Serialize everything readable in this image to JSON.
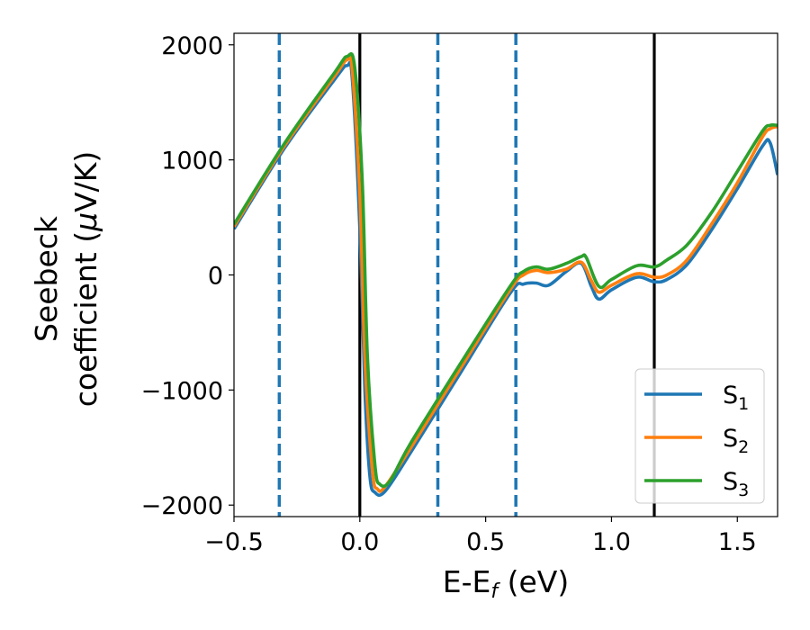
{
  "chart_data": {
    "type": "line",
    "title": "",
    "xlabel": "E-E",
    "xlabel_sub": "f",
    "xlabel_unit": " (eV)",
    "ylabel_line1": "Seebeck",
    "ylabel_line2": "coefficient  (",
    "ylabel_mu": "μ",
    "ylabel_unit": "V/K)",
    "xlim": [
      -0.5,
      1.66
    ],
    "ylim": [
      -2100,
      2100
    ],
    "x_ticks": [
      -0.5,
      0.0,
      0.5,
      1.0,
      1.5
    ],
    "x_tick_labels": [
      "−0.5",
      "0.0",
      "0.5",
      "1.0",
      "1.5"
    ],
    "y_ticks": [
      2000,
      1000,
      0,
      -1000,
      -2000
    ],
    "y_tick_labels": [
      "2000",
      "1000",
      "0",
      "−1000",
      "−2000"
    ],
    "grid": false,
    "legend_position": "bottom-right",
    "vertical_lines": [
      {
        "x": -0.32,
        "style": "dashed",
        "color": "#1f77b4"
      },
      {
        "x": 0.0,
        "style": "solid",
        "color": "#000000"
      },
      {
        "x": 0.31,
        "style": "dashed",
        "color": "#1f77b4"
      },
      {
        "x": 0.62,
        "style": "dashed",
        "color": "#1f77b4"
      },
      {
        "x": 1.17,
        "style": "solid",
        "color": "#000000"
      }
    ],
    "series": [
      {
        "name": "S",
        "sub": "1",
        "color": "#1f77b4",
        "points": [
          [
            -0.5,
            400
          ],
          [
            -0.3,
            1100
          ],
          [
            -0.1,
            1700
          ],
          [
            -0.05,
            1820
          ],
          [
            -0.03,
            1700
          ],
          [
            0.0,
            400
          ],
          [
            0.02,
            -1000
          ],
          [
            0.04,
            -1750
          ],
          [
            0.06,
            -1890
          ],
          [
            0.1,
            -1880
          ],
          [
            0.2,
            -1550
          ],
          [
            0.4,
            -850
          ],
          [
            0.6,
            -150
          ],
          [
            0.65,
            -80
          ],
          [
            0.7,
            -70
          ],
          [
            0.75,
            -90
          ],
          [
            0.82,
            30
          ],
          [
            0.88,
            100
          ],
          [
            0.92,
            -100
          ],
          [
            0.95,
            -210
          ],
          [
            1.0,
            -130
          ],
          [
            1.1,
            -20
          ],
          [
            1.17,
            -60
          ],
          [
            1.22,
            -40
          ],
          [
            1.3,
            90
          ],
          [
            1.4,
            400
          ],
          [
            1.5,
            750
          ],
          [
            1.6,
            1120
          ],
          [
            1.63,
            1150
          ],
          [
            1.66,
            870
          ]
        ]
      },
      {
        "name": "S",
        "sub": "2",
        "color": "#ff7f0e",
        "points": [
          [
            -0.5,
            420
          ],
          [
            -0.3,
            1120
          ],
          [
            -0.1,
            1730
          ],
          [
            -0.05,
            1870
          ],
          [
            -0.03,
            1780
          ],
          [
            0.0,
            700
          ],
          [
            0.02,
            -700
          ],
          [
            0.05,
            -1700
          ],
          [
            0.07,
            -1860
          ],
          [
            0.1,
            -1840
          ],
          [
            0.2,
            -1510
          ],
          [
            0.4,
            -810
          ],
          [
            0.6,
            -120
          ],
          [
            0.65,
            0
          ],
          [
            0.7,
            40
          ],
          [
            0.75,
            20
          ],
          [
            0.82,
            50
          ],
          [
            0.88,
            110
          ],
          [
            0.92,
            -50
          ],
          [
            0.95,
            -150
          ],
          [
            1.0,
            -90
          ],
          [
            1.1,
            10
          ],
          [
            1.17,
            -20
          ],
          [
            1.22,
            0
          ],
          [
            1.3,
            130
          ],
          [
            1.4,
            450
          ],
          [
            1.5,
            800
          ],
          [
            1.6,
            1200
          ],
          [
            1.63,
            1270
          ],
          [
            1.66,
            1290
          ]
        ]
      },
      {
        "name": "S",
        "sub": "3",
        "color": "#2ca02c",
        "points": [
          [
            -0.5,
            440
          ],
          [
            -0.3,
            1140
          ],
          [
            -0.1,
            1760
          ],
          [
            -0.05,
            1900
          ],
          [
            -0.02,
            1800
          ],
          [
            0.01,
            800
          ],
          [
            0.03,
            -700
          ],
          [
            0.06,
            -1650
          ],
          [
            0.08,
            -1820
          ],
          [
            0.12,
            -1790
          ],
          [
            0.2,
            -1470
          ],
          [
            0.4,
            -770
          ],
          [
            0.6,
            -90
          ],
          [
            0.65,
            30
          ],
          [
            0.7,
            70
          ],
          [
            0.75,
            50
          ],
          [
            0.82,
            100
          ],
          [
            0.88,
            160
          ],
          [
            0.9,
            150
          ],
          [
            0.95,
            -100
          ],
          [
            1.0,
            -40
          ],
          [
            1.1,
            80
          ],
          [
            1.17,
            70
          ],
          [
            1.22,
            130
          ],
          [
            1.3,
            260
          ],
          [
            1.4,
            550
          ],
          [
            1.5,
            900
          ],
          [
            1.6,
            1250
          ],
          [
            1.63,
            1300
          ],
          [
            1.66,
            1300
          ]
        ]
      }
    ]
  }
}
